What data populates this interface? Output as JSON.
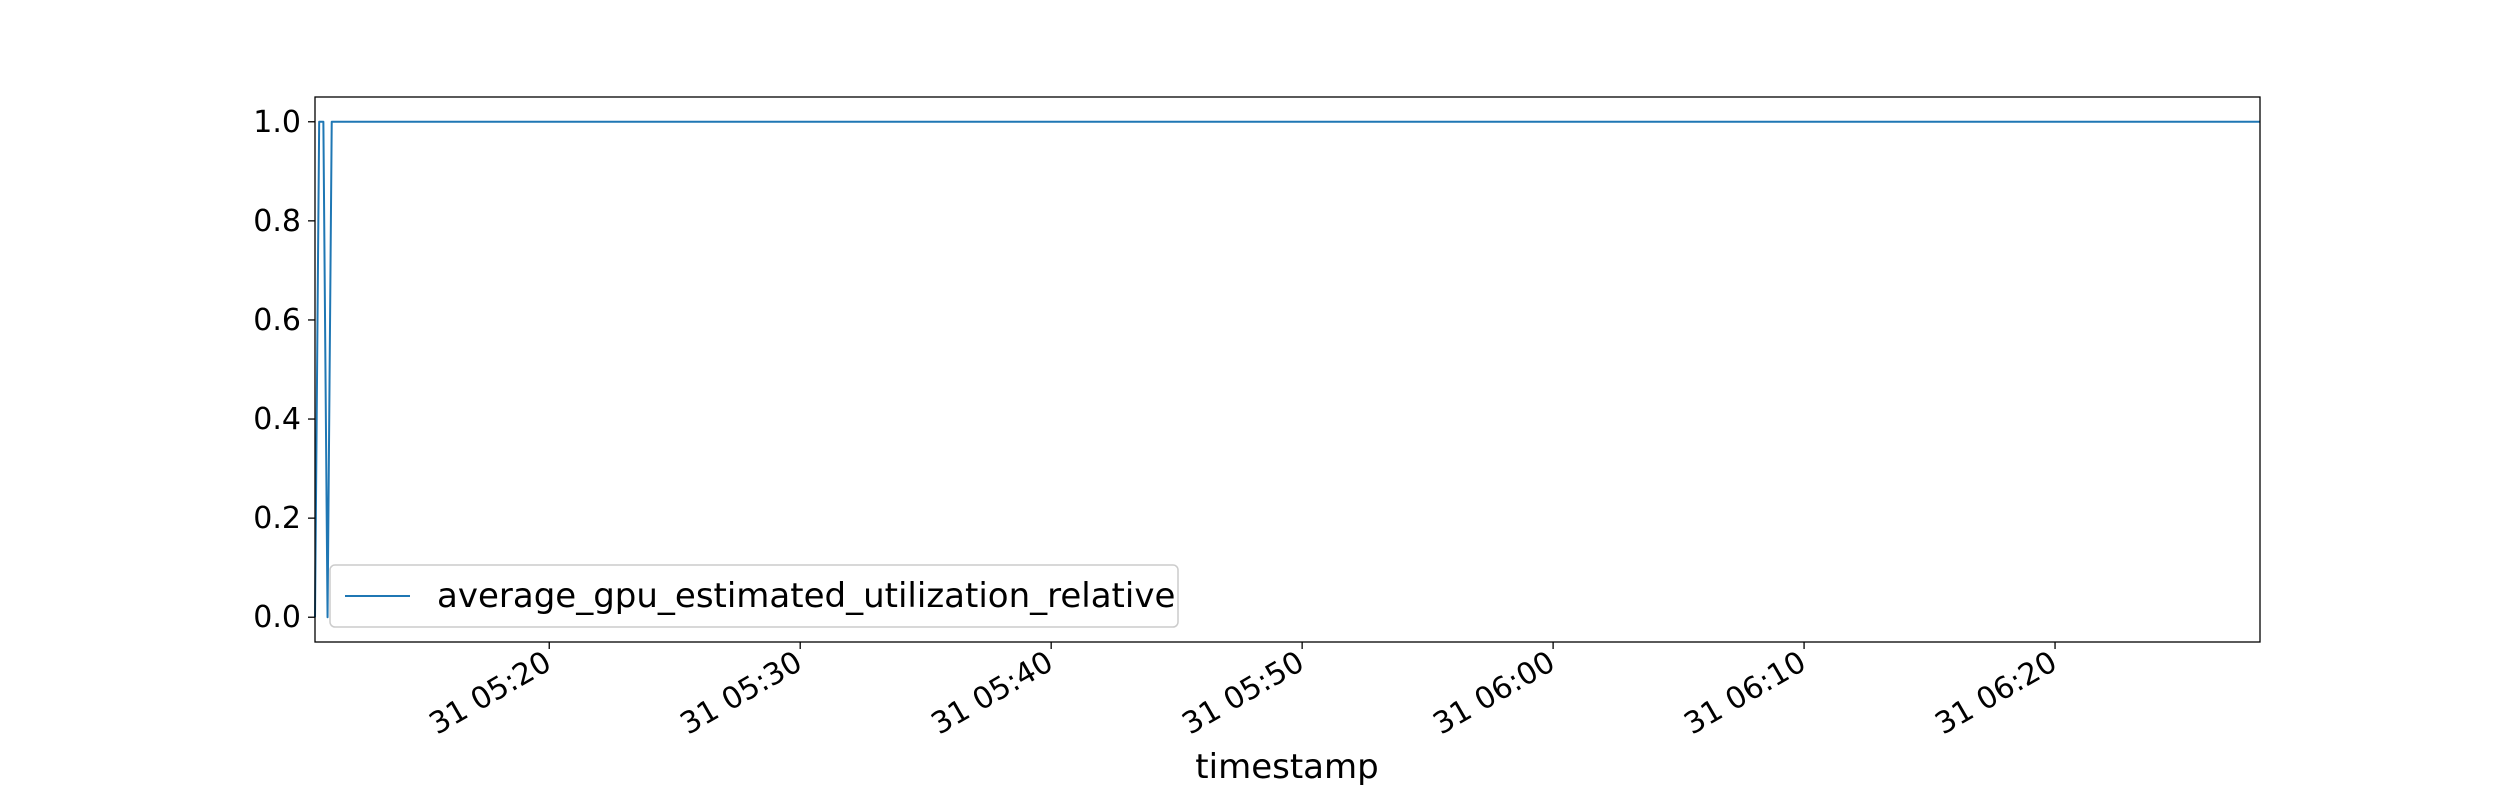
{
  "chart_data": {
    "type": "line",
    "title": "",
    "xlabel": "timestamp",
    "ylabel": "",
    "x_axis_type": "datetime",
    "xlim": [
      "05:10:40",
      "06:28:10"
    ],
    "ylim": [
      -0.05,
      1.05
    ],
    "grid": false,
    "legend_placement": "lower-left",
    "x_ticks": [
      {
        "value": "05:20",
        "label": "31 05:20"
      },
      {
        "value": "05:30",
        "label": "31 05:30"
      },
      {
        "value": "05:40",
        "label": "31 05:40"
      },
      {
        "value": "05:50",
        "label": "31 05:50"
      },
      {
        "value": "06:00",
        "label": "31 06:00"
      },
      {
        "value": "06:10",
        "label": "31 06:10"
      },
      {
        "value": "06:20",
        "label": "31 06:20"
      }
    ],
    "y_ticks": [
      {
        "value": 0.0,
        "label": "0.0"
      },
      {
        "value": 0.2,
        "label": "0.2"
      },
      {
        "value": 0.4,
        "label": "0.4"
      },
      {
        "value": 0.6,
        "label": "0.6"
      },
      {
        "value": 0.8,
        "label": "0.8"
      },
      {
        "value": 1.0,
        "label": "1.0"
      }
    ],
    "series": [
      {
        "name": "average_gpu_estimated_utilization_relative",
        "color": "#1f77b4",
        "x": [
          "05:10:40",
          "05:10:50",
          "05:11:00",
          "05:11:10",
          "05:11:20",
          "05:12:00",
          "05:20:00",
          "05:30:00",
          "05:40:00",
          "05:50:00",
          "06:00:00",
          "06:10:00",
          "06:20:00",
          "06:28:10"
        ],
        "values": [
          0.0,
          1.0,
          1.0,
          0.0,
          1.0,
          1.0,
          1.0,
          1.0,
          1.0,
          1.0,
          1.0,
          1.0,
          1.0,
          1.0
        ]
      }
    ]
  }
}
